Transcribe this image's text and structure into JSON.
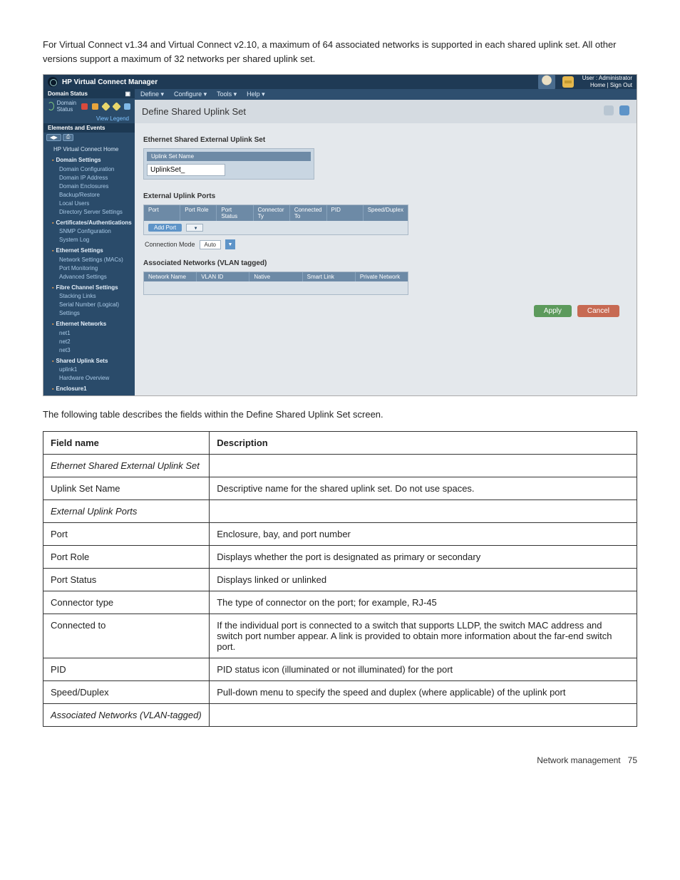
{
  "intro": "For Virtual Connect v1.34 and Virtual Connect v2.10, a maximum of 64 associated networks is supported in each shared uplink set. All other versions support a maximum of 32 networks per shared uplink set.",
  "topbar": {
    "title": "HP Virtual Connect Manager",
    "user_label": "User : Administrator",
    "links": "Home | Sign Out"
  },
  "sidebar": {
    "domain_status_label": "Domain Status",
    "status_icons_counts": [
      "0",
      "0",
      "0",
      "0",
      "0"
    ],
    "domain_status_text": "Domain Status",
    "view_legend": "View Legend",
    "elements_header": "Elements and Events",
    "hp_home": "HP Virtual Connect Home",
    "groups": [
      {
        "label": "Domain Settings",
        "items": [
          "Domain Configuration",
          "Domain IP Address",
          "Domain Enclosures",
          "Backup/Restore",
          "Local Users",
          "Directory Server Settings"
        ]
      },
      {
        "label": "Certificates/Authentications",
        "items": [
          "SNMP Configuration",
          "System Log"
        ]
      },
      {
        "label": "Ethernet Settings",
        "items": [
          "Network Settings (MACs)",
          "Port Monitoring",
          "Advanced Settings"
        ]
      },
      {
        "label": "Fibre Channel Settings",
        "items": [
          "Stacking Links",
          "Serial Number (Logical) Settings"
        ]
      },
      {
        "label": "Ethernet Networks",
        "items": [
          "net1",
          "net2",
          "net3"
        ]
      },
      {
        "label": "Shared Uplink Sets",
        "items": [
          "uplink1"
        ],
        "highlight": true
      },
      {
        "label": "",
        "items": [
          "Hardware Overview"
        ],
        "plain": true
      },
      {
        "label": "Enclosure1",
        "items": []
      }
    ]
  },
  "menu": [
    "Define ▾",
    "Configure ▾",
    "Tools ▾",
    "Help ▾"
  ],
  "page_title": "Define Shared Uplink Set",
  "section1": {
    "header": "Ethernet Shared External Uplink Set",
    "field_header": "Uplink Set Name",
    "value": "UplinkSet_"
  },
  "section2": {
    "header": "External Uplink Ports",
    "columns": [
      "Port",
      "Port Role",
      "Port Status",
      "Connector Ty",
      "Connected To",
      "PID",
      "Speed/Duplex"
    ],
    "add_port": "Add Port",
    "conn_mode_label": "Connection Mode",
    "conn_mode_value": "Auto"
  },
  "section3": {
    "header": "Associated Networks (VLAN tagged)",
    "columns": [
      "Network Name",
      "VLAN ID",
      "Native",
      "Smart Link",
      "Private Network"
    ]
  },
  "buttons": {
    "apply": "Apply",
    "cancel": "Cancel"
  },
  "below": "The following table describes the fields within the Define Shared Uplink Set screen.",
  "table": {
    "head": [
      "Field name",
      "Description"
    ],
    "rows": [
      {
        "name": "Ethernet Shared External Uplink Set",
        "desc": "",
        "italic": true
      },
      {
        "name": "Uplink Set Name",
        "desc": "Descriptive name for the shared uplink set. Do not use spaces."
      },
      {
        "name": "External Uplink Ports",
        "desc": "",
        "italic": true
      },
      {
        "name": "Port",
        "desc": "Enclosure, bay, and port number"
      },
      {
        "name": "Port Role",
        "desc": "Displays whether the port is designated as primary or secondary"
      },
      {
        "name": "Port Status",
        "desc": "Displays linked or unlinked"
      },
      {
        "name": "Connector type",
        "desc": "The type of connector on the port; for example, RJ-45"
      },
      {
        "name": "Connected to",
        "desc": "If the individual port is connected to a switch that supports LLDP, the switch MAC address and switch port number appear. A link is provided to obtain more information about the far-end switch port."
      },
      {
        "name": "PID",
        "desc": "PID status icon (illuminated or not illuminated) for the port"
      },
      {
        "name": "Speed/Duplex",
        "desc": "Pull-down menu to specify the speed and duplex (where applicable) of the uplink port"
      },
      {
        "name": "Associated Networks (VLAN-tagged)",
        "desc": "",
        "italic": true
      }
    ]
  },
  "footer": {
    "text": "Network management",
    "page": "75"
  }
}
